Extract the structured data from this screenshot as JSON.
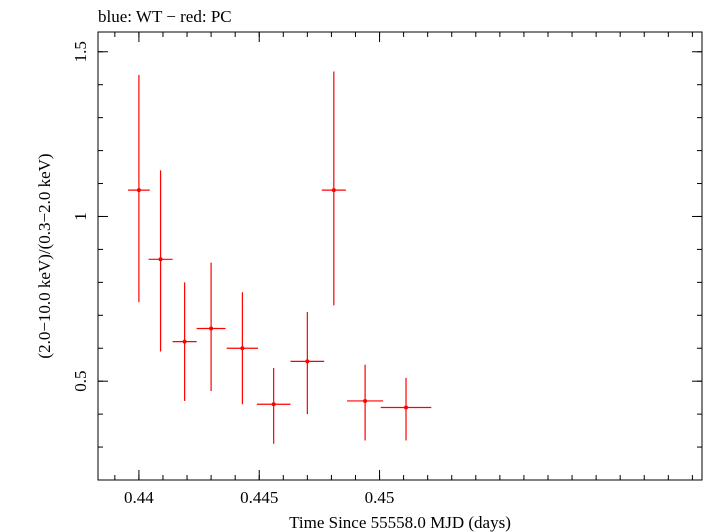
{
  "chart_data": {
    "type": "scatter",
    "title": "blue: WT − red: PC",
    "xlabel": "Time Since 55558.0 MJD (days)",
    "ylabel": "(2.0−10.0 keV)/(0.3−2.0 keV)",
    "xlim": [
      0.4383,
      0.4634
    ],
    "ylim": [
      0.2,
      1.56
    ],
    "x_ticks": [
      0.44,
      0.445,
      0.45
    ],
    "x_tick_labels": [
      "0.44",
      "0.445",
      "0.45"
    ],
    "y_ticks": [
      0.5,
      1,
      1.5
    ],
    "y_tick_labels": [
      "0.5",
      "1",
      "1.5"
    ],
    "grid": false,
    "series": [
      {
        "color": "#ff0000",
        "points": [
          {
            "x": 0.44,
            "xerr": 0.00045,
            "y": 1.08,
            "ylo": 0.74,
            "yhi": 1.43
          },
          {
            "x": 0.4409,
            "xerr": 0.0005,
            "y": 0.87,
            "ylo": 0.59,
            "yhi": 1.14
          },
          {
            "x": 0.4419,
            "xerr": 0.0005,
            "y": 0.62,
            "ylo": 0.44,
            "yhi": 0.8
          },
          {
            "x": 0.443,
            "xerr": 0.0006,
            "y": 0.66,
            "ylo": 0.47,
            "yhi": 0.86
          },
          {
            "x": 0.4443,
            "xerr": 0.00065,
            "y": 0.6,
            "ylo": 0.43,
            "yhi": 0.77
          },
          {
            "x": 0.4456,
            "xerr": 0.0007,
            "y": 0.43,
            "ylo": 0.31,
            "yhi": 0.54
          },
          {
            "x": 0.447,
            "xerr": 0.0007,
            "y": 0.56,
            "ylo": 0.4,
            "yhi": 0.71
          },
          {
            "x": 0.4481,
            "xerr": 0.0005,
            "y": 1.08,
            "ylo": 0.73,
            "yhi": 1.44
          },
          {
            "x": 0.4494,
            "xerr": 0.00075,
            "y": 0.44,
            "ylo": 0.32,
            "yhi": 0.55
          },
          {
            "x": 0.4511,
            "xerr": 0.00105,
            "y": 0.42,
            "ylo": 0.32,
            "yhi": 0.51
          }
        ]
      }
    ]
  }
}
